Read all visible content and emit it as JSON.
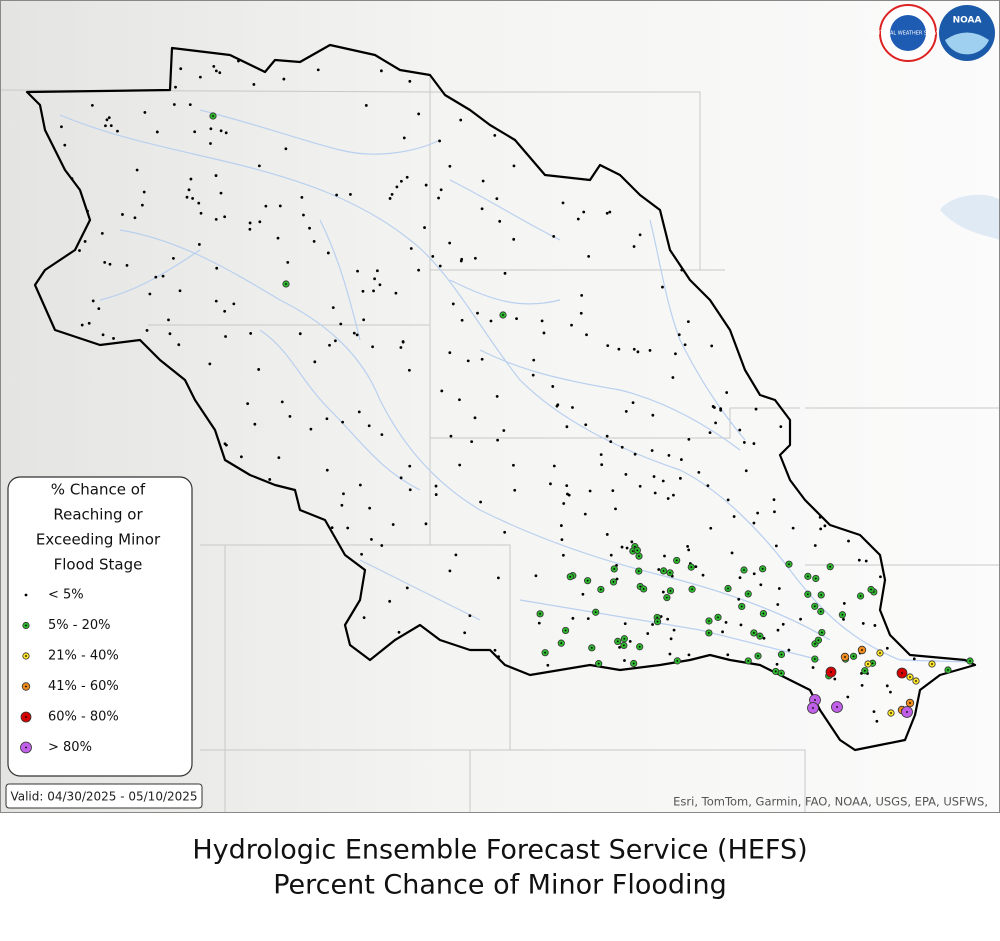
{
  "legend": {
    "title": [
      "% Chance of",
      "Reaching or",
      "Exceeding Minor",
      "Flood Stage"
    ],
    "items": [
      {
        "label": "< 5%",
        "color": "#000000"
      },
      {
        "label": "5% - 20%",
        "color": "#2eb82e"
      },
      {
        "label": "21% - 40%",
        "color": "#ffe629"
      },
      {
        "label": "41% - 60%",
        "color": "#f08c1e"
      },
      {
        "label": "60% - 80%",
        "color": "#d40000"
      },
      {
        "label": "> 80%",
        "color": "#c060e8"
      }
    ]
  },
  "valid": "Valid: 04/30/2025 - 05/10/2025",
  "attribution": "Esri, TomTom, Garmin, FAO, NOAA, USGS, EPA, USFWS,",
  "logos": {
    "nws": "NATIONAL WEATHER SERVICE",
    "noaa": "NOAA"
  },
  "title": [
    "Hydrologic Ensemble Forecast Service (HEFS)",
    "Percent Chance of Minor Flooding"
  ]
}
